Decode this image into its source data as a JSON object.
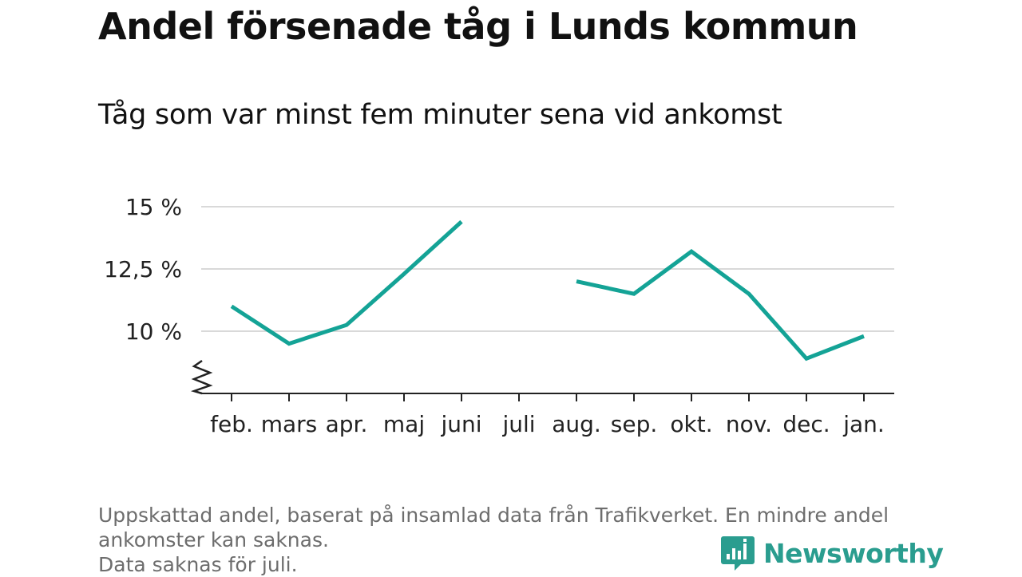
{
  "title": "Andel försenade tåg i Lunds kommun",
  "subtitle": "Tåg som var minst fem minuter sena vid ankomst",
  "footnote": [
    "Uppskattad andel, baserat på insamlad data från Trafikverket. En mindre andel",
    "ankomster kan saknas.",
    "Data saknas för juli."
  ],
  "brand": {
    "name": "Newsworthy",
    "icon": "newsworthy-logo-icon",
    "color": "#2a9d8f"
  },
  "colors": {
    "line": "#14a396",
    "grid": "#d9d9d9",
    "axis": "#222222"
  },
  "chart_data": {
    "type": "line",
    "title": "Andel försenade tåg i Lunds kommun",
    "subtitle": "Tåg som var minst fem minuter sena vid ankomst",
    "categories": [
      "feb.",
      "mars",
      "apr.",
      "maj",
      "juni",
      "juli",
      "aug.",
      "sep.",
      "okt.",
      "nov.",
      "dec.",
      "jan."
    ],
    "values": [
      11.0,
      9.5,
      10.25,
      12.3,
      14.4,
      null,
      12.0,
      11.5,
      13.2,
      11.5,
      8.9,
      9.8
    ],
    "ylim": [
      7.5,
      15
    ],
    "yticks": [
      10,
      12.5,
      15
    ],
    "ytick_labels": [
      "10 %",
      "12,5 %",
      "15 %"
    ],
    "axis_break": true,
    "grid": true,
    "xlabel": "",
    "ylabel": ""
  }
}
